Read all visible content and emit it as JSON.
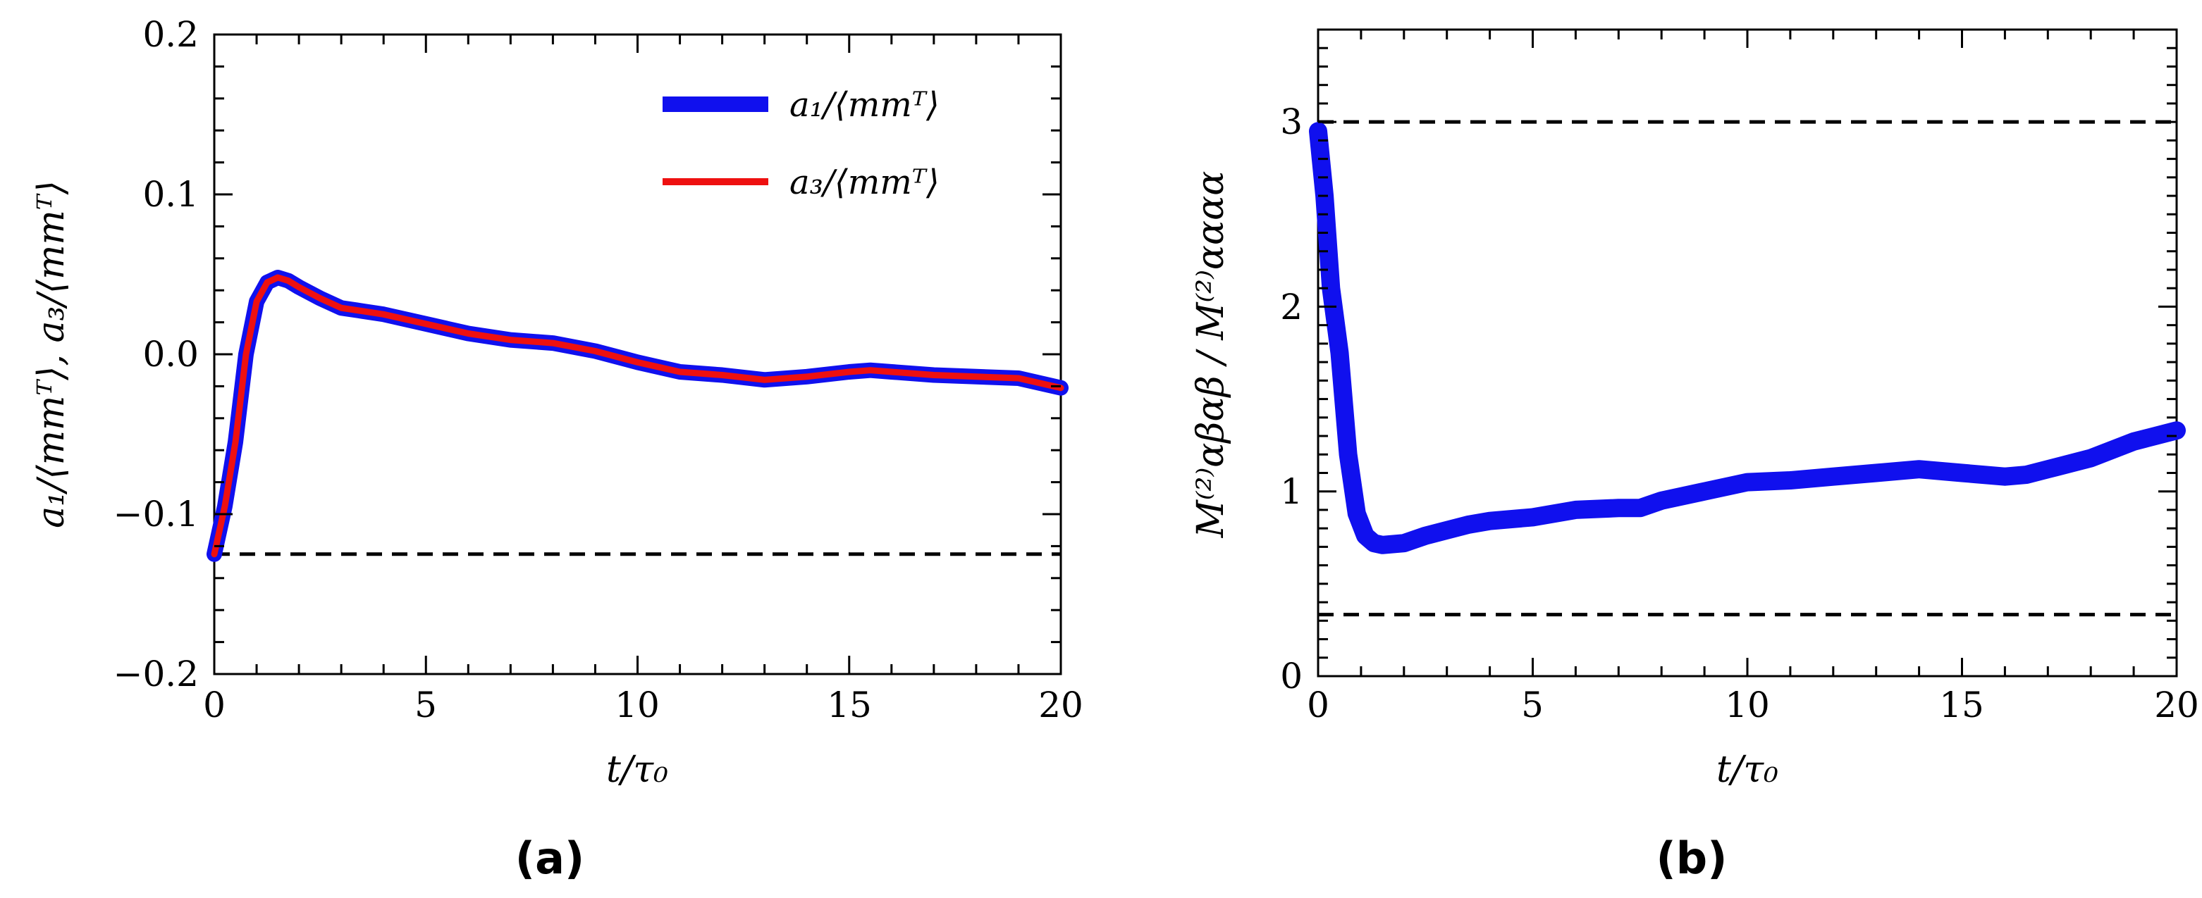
{
  "chart_data": [
    {
      "type": "line",
      "panel_label": "(a)",
      "xlabel": "t/τ₀",
      "ylabel": "a₁/⟨mmᵀ⟩, a₃/⟨mmᵀ⟩",
      "xlim": [
        0,
        20
      ],
      "ylim": [
        -0.2,
        0.2
      ],
      "xticks": [
        0,
        5,
        10,
        15,
        20
      ],
      "xtick_labels": [
        "0",
        "5",
        "10",
        "15",
        "20"
      ],
      "yticks": [
        -0.2,
        -0.1,
        0.0,
        0.1,
        0.2
      ],
      "ytick_labels": [
        "−0.2",
        "−0.1",
        "0.0",
        "0.1",
        "0.2"
      ],
      "legend_position": "top-right",
      "x": [
        0,
        0.25,
        0.5,
        0.75,
        1.0,
        1.25,
        1.5,
        1.75,
        2.0,
        2.5,
        3,
        3.5,
        4,
        5,
        6,
        7,
        8,
        9,
        10,
        11,
        12,
        13,
        14,
        15,
        15.5,
        16,
        17,
        18,
        19,
        20
      ],
      "series": [
        {
          "name": "a₁/⟨mmᵀ⟩",
          "color": "#1010ee",
          "style": "thick",
          "values": [
            -0.125,
            -0.095,
            -0.055,
            0.0,
            0.033,
            0.045,
            0.048,
            0.046,
            0.042,
            0.035,
            0.029,
            0.027,
            0.025,
            0.019,
            0.013,
            0.009,
            0.007,
            0.002,
            -0.005,
            -0.011,
            -0.013,
            -0.016,
            -0.014,
            -0.011,
            -0.01,
            -0.011,
            -0.013,
            -0.014,
            -0.015,
            -0.021
          ]
        },
        {
          "name": "a₃/⟨mmᵀ⟩",
          "color": "#ee1010",
          "style": "thin",
          "values": [
            -0.125,
            -0.095,
            -0.055,
            0.0,
            0.033,
            0.045,
            0.048,
            0.046,
            0.042,
            0.035,
            0.029,
            0.027,
            0.025,
            0.019,
            0.013,
            0.009,
            0.007,
            0.002,
            -0.005,
            -0.011,
            -0.013,
            -0.016,
            -0.014,
            -0.011,
            -0.01,
            -0.011,
            -0.013,
            -0.014,
            -0.015,
            -0.021
          ]
        }
      ],
      "reference_lines": [
        -0.125
      ]
    },
    {
      "type": "line",
      "panel_label": "(b)",
      "xlabel": "t/τ₀",
      "ylabel": "M⁽²⁾αβαβ / M⁽²⁾αααα",
      "xlim": [
        0,
        20
      ],
      "ylim": [
        0,
        3.5
      ],
      "xticks": [
        0,
        5,
        10,
        15,
        20
      ],
      "xtick_labels": [
        "0",
        "5",
        "10",
        "15",
        "20"
      ],
      "yticks": [
        0,
        1,
        2,
        3
      ],
      "ytick_labels": [
        "0",
        "1",
        "2",
        "3"
      ],
      "x": [
        0,
        0.15,
        0.3,
        0.5,
        0.7,
        0.9,
        1.1,
        1.3,
        1.5,
        2,
        2.5,
        3,
        3.5,
        4,
        5,
        6,
        7,
        7.5,
        8,
        9,
        10,
        11,
        12,
        13,
        14,
        15,
        16,
        16.5,
        17,
        18,
        19,
        20
      ],
      "series": [
        {
          "name": "ratio",
          "color": "#1010ee",
          "style": "thick",
          "values": [
            2.95,
            2.6,
            2.1,
            1.75,
            1.2,
            0.88,
            0.76,
            0.72,
            0.71,
            0.72,
            0.76,
            0.79,
            0.82,
            0.84,
            0.86,
            0.9,
            0.91,
            0.91,
            0.95,
            1.0,
            1.05,
            1.06,
            1.08,
            1.1,
            1.12,
            1.1,
            1.08,
            1.09,
            1.12,
            1.18,
            1.27,
            1.33
          ]
        }
      ],
      "reference_lines": [
        3.0,
        0.333
      ]
    }
  ]
}
